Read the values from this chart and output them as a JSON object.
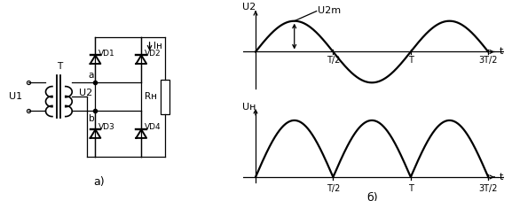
{
  "fig_width": 5.77,
  "fig_height": 2.27,
  "dpi": 100,
  "background": "#ffffff",
  "lc": "#000000",
  "lw": 1.6,
  "tlw": 0.9,
  "circuit_label": "а)",
  "wave_label": "б)",
  "U1": "U1",
  "U2": "U2",
  "T_label": "T",
  "VD1": "VD1",
  "VD2": "VD2",
  "VD3": "VD3",
  "VD4": "VD4",
  "RH": "Rн",
  "IH": "Iн",
  "U2m": "U2m",
  "UN": "Uн",
  "a_pt": "a",
  "b_pt": "b",
  "tick_labels": [
    "T/2",
    "T",
    "3T/2"
  ]
}
